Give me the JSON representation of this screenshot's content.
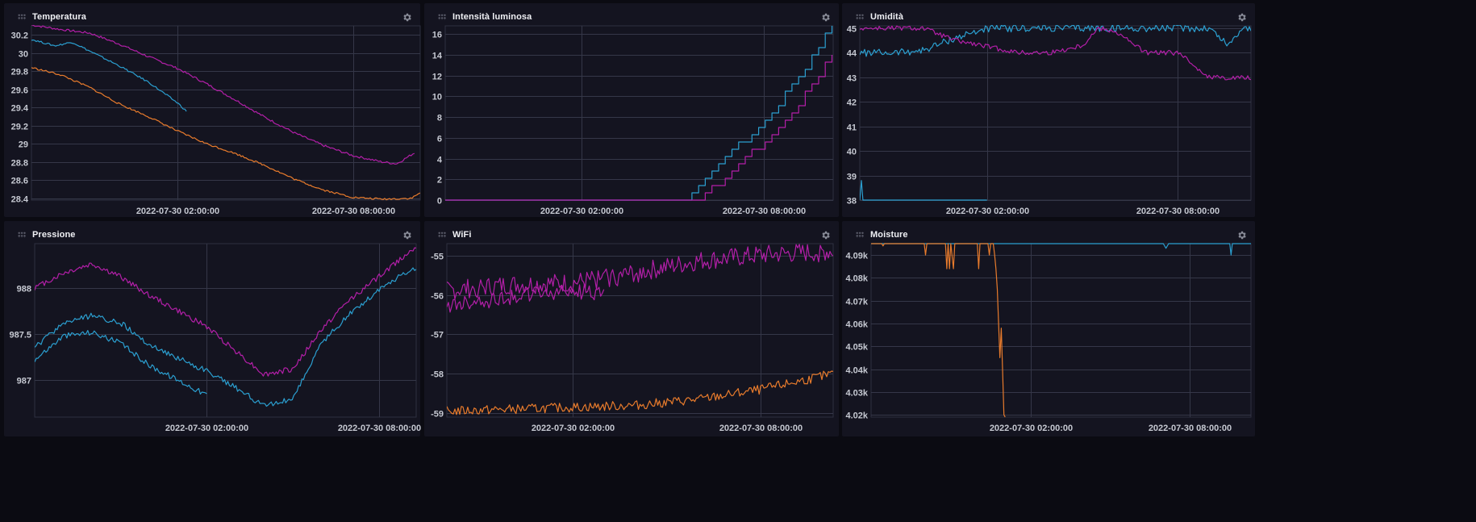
{
  "dashboard": {
    "cells": [
      {
        "id": "temperatura",
        "title": "Temperatura",
        "chart_data": {
          "type": "line",
          "title": "Temperatura",
          "xlabel": "",
          "ylabel": "",
          "x_ticks": [
            "2022-07-30 02:00:00",
            "2022-07-30 08:00:00"
          ],
          "y_ticks": [
            "30.2",
            "30",
            "29.8",
            "29.6",
            "29.4",
            "29.2",
            "29",
            "28.8",
            "28.6",
            "28.4"
          ],
          "y_tick_values": [
            30.2,
            30.0,
            29.8,
            29.6,
            29.4,
            29.2,
            29.0,
            28.8,
            28.6,
            28.4
          ],
          "ylim": [
            28.38,
            30.3
          ],
          "xlim_hours": [
            -3,
            10.3
          ],
          "grid": true,
          "series": [
            {
              "color": "#b31fa8",
              "x": [
                -3,
                -2,
                -1,
                0,
                1,
                2,
                3,
                4,
                5,
                6,
                7,
                8,
                9,
                9.5,
                10.1
              ],
              "y": [
                30.31,
                30.26,
                30.22,
                30.1,
                29.96,
                29.83,
                29.66,
                29.48,
                29.29,
                29.12,
                28.98,
                28.87,
                28.8,
                28.78,
                28.9
              ],
              "noise": 0.012
            },
            {
              "color": "#2b9fd0",
              "x": [
                -3,
                -2.2,
                -1.6,
                -1,
                0,
                1,
                2,
                2.3
              ],
              "y": [
                30.15,
                30.08,
                30.12,
                30.02,
                29.86,
                29.68,
                29.45,
                29.36
              ],
              "noise": 0.01
            },
            {
              "color": "#e87b2c",
              "x": [
                -3,
                -2,
                -1,
                0,
                1,
                2,
                3,
                4,
                5,
                6,
                7,
                8,
                9,
                10,
                10.3
              ],
              "y": [
                29.84,
                29.76,
                29.62,
                29.44,
                29.3,
                29.14,
                29.0,
                28.89,
                28.76,
                28.61,
                28.49,
                28.41,
                28.39,
                28.4,
                28.46
              ],
              "noise": 0.01
            }
          ]
        }
      },
      {
        "id": "intensita-luminosa",
        "title": "Intensità luminosa",
        "chart_data": {
          "type": "line",
          "title": "Intensità luminosa",
          "xlabel": "",
          "ylabel": "",
          "x_ticks": [
            "2022-07-30 02:00:00",
            "2022-07-30 08:00:00"
          ],
          "y_ticks": [
            "16",
            "14",
            "12",
            "10",
            "8",
            "6",
            "4",
            "2",
            "0"
          ],
          "y_tick_values": [
            16,
            14,
            12,
            10,
            8,
            6,
            4,
            2,
            0
          ],
          "ylim": [
            0,
            16.8
          ],
          "xlim_hours": [
            -2.5,
            10.3
          ],
          "grid": true,
          "step": true,
          "series": [
            {
              "color": "#2b9fd0",
              "x": [
                -2.5,
                5.4,
                6,
                7,
                8,
                9,
                10,
                10.3
              ],
              "y": [
                0,
                0,
                2.2,
                4.8,
                7.6,
                11.2,
                15.6,
                16.8
              ],
              "noise": 0
            },
            {
              "color": "#b31fa8",
              "x": [
                -2.5,
                5.8,
                6.5,
                7.5,
                8.5,
                9.5,
                10.3
              ],
              "y": [
                0,
                0,
                1.6,
                4.2,
                7.2,
                10.6,
                14.1
              ],
              "noise": 0
            }
          ]
        }
      },
      {
        "id": "umidita",
        "title": "Umidità",
        "chart_data": {
          "type": "line",
          "title": "Umidità",
          "xlabel": "",
          "ylabel": "",
          "x_ticks": [
            "2022-07-30 02:00:00",
            "2022-07-30 08:00:00"
          ],
          "y_ticks": [
            "45",
            "44",
            "43",
            "42",
            "41",
            "40",
            "39",
            "38"
          ],
          "y_tick_values": [
            45,
            44,
            43,
            42,
            41,
            40,
            39,
            38
          ],
          "ylim": [
            38,
            45.1
          ],
          "xlim_hours": [
            -2,
            10.3
          ],
          "grid": true,
          "series": [
            {
              "color": "#2b9fd0",
              "x": [
                -2,
                -1,
                0,
                1,
                2,
                3,
                4,
                5,
                6,
                7,
                8,
                9,
                9.6,
                10,
                10.3
              ],
              "y": [
                44,
                44,
                44.1,
                44.6,
                45,
                45,
                45,
                45,
                45,
                45,
                45,
                45,
                44.3,
                45,
                45
              ],
              "noise": 0.15
            },
            {
              "color": "#2b9fd0",
              "x": [
                -2,
                -1.95,
                -1.9,
                0,
                2
              ],
              "y": [
                38,
                38.8,
                38,
                38,
                38
              ],
              "noise": 0
            },
            {
              "color": "#b31fa8",
              "x": [
                -2,
                0,
                1,
                3,
                4,
                5,
                5.5,
                6,
                7,
                8,
                9,
                10.3
              ],
              "y": [
                45,
                45,
                44.5,
                44,
                44,
                44.3,
                45,
                44.9,
                44,
                44,
                43,
                43
              ],
              "noise": 0.1
            }
          ]
        }
      },
      {
        "id": "pressione",
        "title": "Pressione",
        "chart_data": {
          "type": "line",
          "title": "Pressione",
          "xlabel": "",
          "ylabel": "",
          "x_ticks": [
            "2022-07-30 02:00:00",
            "2022-07-30 08:00:00"
          ],
          "y_ticks": [
            "988",
            "987.5",
            "987"
          ],
          "y_tick_values": [
            988,
            987.5,
            987
          ],
          "ylim": [
            986.6,
            988.48
          ],
          "xlim_hours": [
            -4,
            9.3
          ],
          "grid": true,
          "series": [
            {
              "color": "#b31fa8",
              "x": [
                -4,
                -3,
                -2,
                -1,
                0,
                1,
                2,
                3,
                4,
                5,
                6,
                7,
                8,
                9,
                9.3
              ],
              "y": [
                988.0,
                988.16,
                988.26,
                988.12,
                987.92,
                987.75,
                987.58,
                987.32,
                987.06,
                987.12,
                987.55,
                987.88,
                988.12,
                988.38,
                988.45
              ],
              "noise": 0.03
            },
            {
              "color": "#2b9fd0",
              "x": [
                -4,
                -3,
                -2,
                -1,
                0,
                1,
                2,
                3,
                4,
                5,
                6,
                7,
                8,
                9,
                9.3
              ],
              "y": [
                987.35,
                987.62,
                987.7,
                987.62,
                987.38,
                987.24,
                987.1,
                986.92,
                986.72,
                986.8,
                987.4,
                987.72,
                987.98,
                988.18,
                988.2
              ],
              "noise": 0.03
            },
            {
              "color": "#2b9fd0",
              "x": [
                -4,
                -3,
                -2,
                -1,
                0,
                1,
                2
              ],
              "y": [
                987.22,
                987.48,
                987.52,
                987.4,
                987.16,
                987.0,
                986.84
              ],
              "noise": 0.03
            }
          ]
        }
      },
      {
        "id": "wifi",
        "title": "WiFi",
        "chart_data": {
          "type": "line",
          "title": "WiFi",
          "xlabel": "",
          "ylabel": "",
          "x_ticks": [
            "2022-07-30 02:00:00",
            "2022-07-30 08:00:00"
          ],
          "y_ticks": [
            "-55",
            "-56",
            "-57",
            "-58",
            "-59"
          ],
          "y_tick_values": [
            -55,
            -56,
            -57,
            -58,
            -59
          ],
          "ylim": [
            -59.1,
            -54.7
          ],
          "xlim_hours": [
            -2,
            10.3
          ],
          "grid": true,
          "series": [
            {
              "color": "#b31fa8",
              "x": [
                -2,
                0,
                2,
                4,
                6,
                8,
                10.3
              ],
              "y": [
                -55.9,
                -55.75,
                -55.7,
                -55.45,
                -55.15,
                -55.0,
                -54.9
              ],
              "noise": 0.25
            },
            {
              "color": "#b31fa8",
              "x": [
                -2,
                0,
                2,
                3
              ],
              "y": [
                -56.3,
                -56.05,
                -55.9,
                -55.95
              ],
              "noise": 0.2
            },
            {
              "color": "#e87b2c",
              "x": [
                -2,
                0,
                2,
                4,
                6,
                8,
                10.3
              ],
              "y": [
                -58.95,
                -58.9,
                -58.85,
                -58.8,
                -58.65,
                -58.4,
                -58.0
              ],
              "noise": 0.12
            }
          ]
        }
      },
      {
        "id": "moisture",
        "title": "Moisture",
        "chart_data": {
          "type": "line",
          "title": "Moisture",
          "xlabel": "",
          "ylabel": "",
          "x_ticks": [
            "2022-07-30 02:00:00",
            "2022-07-30 08:00:00"
          ],
          "y_ticks": [
            "4.09k",
            "4.08k",
            "4.07k",
            "4.06k",
            "4.05k",
            "4.04k",
            "4.03k",
            "4.02k"
          ],
          "y_tick_values": [
            4090,
            4080,
            4070,
            4060,
            4050,
            4040,
            4030,
            4020
          ],
          "ylim": [
            4019,
            4095
          ],
          "xlim_hours": [
            -4,
            10.3
          ],
          "grid": true,
          "series": [
            {
              "color": "#2b9fd0",
              "x": [
                -4,
                7,
                7.1,
                7.2,
                9.5,
                9.55,
                9.6,
                10.3
              ],
              "y": [
                4095,
                4095,
                4093,
                4095,
                4095,
                4090,
                4095,
                4095
              ],
              "noise": 0
            },
            {
              "color": "#e87b2c",
              "x": [
                -4,
                -3.6,
                -3.55,
                -3.5,
                -2,
                -1.95,
                -1.9,
                -1.2,
                -1.15,
                -1.1,
                -1.05,
                -1.0,
                -0.9,
                -0.85,
                -0.8,
                0,
                0.05,
                0.1,
                0.4,
                0.45,
                0.5,
                0.6,
                0.65,
                0.7,
                0.75,
                0.8,
                0.85,
                0.9,
                0.95,
                1.0,
                1.05
              ],
              "y": [
                4095,
                4095,
                4094,
                4095,
                4095,
                4090,
                4095,
                4095,
                4084,
                4095,
                4084,
                4095,
                4084,
                4095,
                4095,
                4095,
                4084,
                4095,
                4095,
                4090,
                4095,
                4095,
                4090,
                4084,
                4075,
                4060,
                4045,
                4058,
                4040,
                4020,
                4019
              ],
              "noise": 0
            }
          ]
        }
      }
    ]
  }
}
